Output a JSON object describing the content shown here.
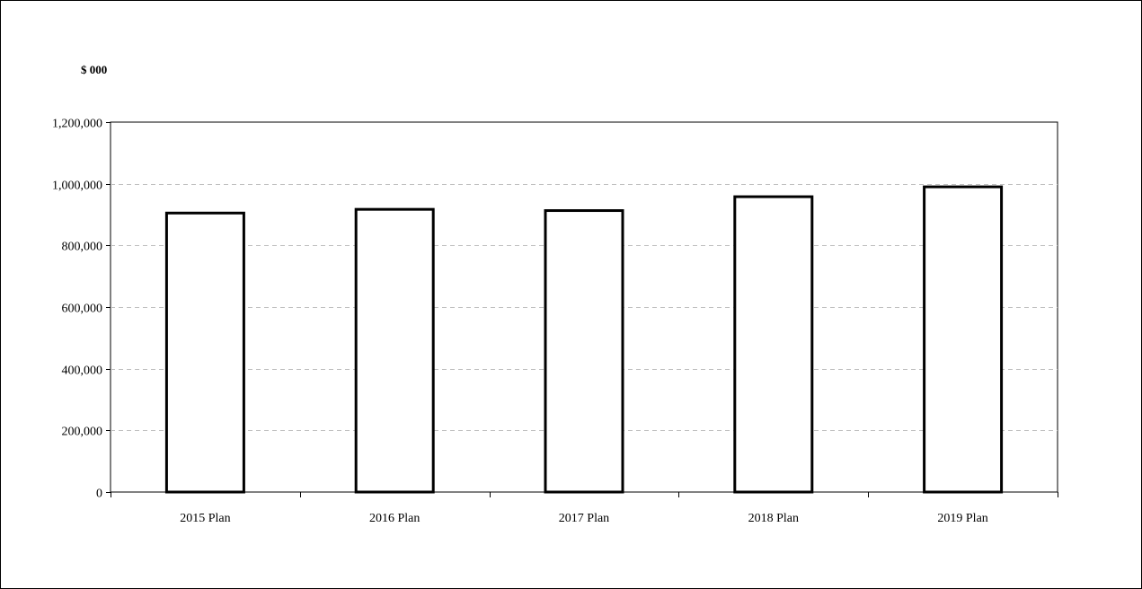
{
  "chart_data": {
    "type": "bar",
    "unit_label": "$ 000",
    "categories": [
      "2015 Plan",
      "2016 Plan",
      "2017 Plan",
      "2018 Plan",
      "2019 Plan"
    ],
    "values": [
      905000,
      917000,
      913000,
      958000,
      990000
    ],
    "y_ticks": [
      "0",
      "200,000",
      "400,000",
      "600,000",
      "800,000",
      "1,000,000",
      "1,200,000"
    ],
    "ylim": [
      0,
      1200000
    ],
    "y_step": 200000,
    "grid": "horizontal dashed",
    "legend": "none",
    "colors": {
      "bar_fill": "#ffffff",
      "bar_stroke": "#000000",
      "grid": "#bfbfbf",
      "axis": "#000000"
    }
  }
}
